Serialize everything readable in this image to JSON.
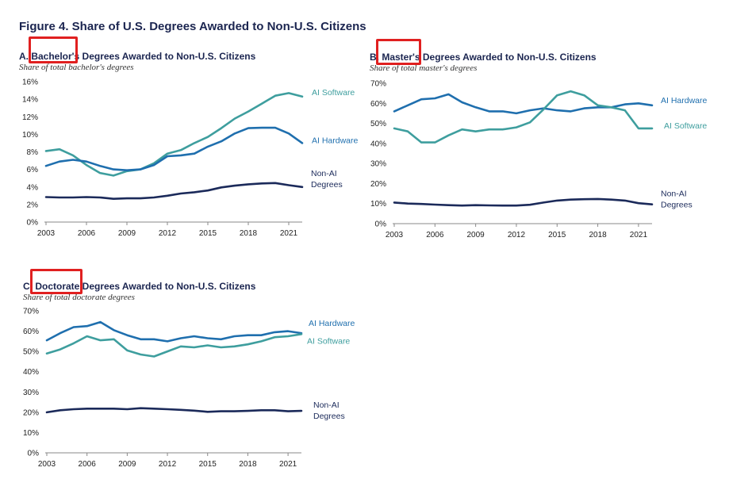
{
  "figure_title": "Figure 4. Share of U.S. Degrees Awarded to Non-U.S. Citizens",
  "colors": {
    "hardware": "#1f6fae",
    "software": "#3e9e9e",
    "nonai": "#1b2a5a",
    "highlight": "#e02020"
  },
  "chart_data": [
    {
      "type": "line",
      "panel": "A",
      "title": "A. Bachelor's Degrees Awarded to Non-U.S. Citizens",
      "subtitle": "Share of total bachelor's degrees",
      "highlighted_word": "Bachelor's",
      "x": [
        2003,
        2004,
        2005,
        2006,
        2007,
        2008,
        2009,
        2010,
        2011,
        2012,
        2013,
        2014,
        2015,
        2016,
        2017,
        2018,
        2019,
        2020,
        2021,
        2022
      ],
      "xticks": [
        2003,
        2006,
        2009,
        2012,
        2015,
        2018,
        2021
      ],
      "ylim": [
        0,
        16
      ],
      "yticks": [
        0,
        2,
        4,
        6,
        8,
        10,
        12,
        14,
        16
      ],
      "yformat": "%",
      "series": [
        {
          "name": "AI Software",
          "color_key": "software",
          "label_lines": [
            "AI Software"
          ],
          "values": [
            8.1,
            8.3,
            7.6,
            6.5,
            5.6,
            5.3,
            5.8,
            6.0,
            6.7,
            7.8,
            8.2,
            9.0,
            9.7,
            10.7,
            11.8,
            12.6,
            13.5,
            14.4,
            14.7,
            14.3
          ]
        },
        {
          "name": "AI Hardware",
          "color_key": "hardware",
          "label_lines": [
            "AI Hardware"
          ],
          "values": [
            6.4,
            6.9,
            7.1,
            6.9,
            6.4,
            6.0,
            5.9,
            6.0,
            6.5,
            7.5,
            7.6,
            7.8,
            8.6,
            9.2,
            10.1,
            10.7,
            10.75,
            10.75,
            10.1,
            9.0
          ]
        },
        {
          "name": "Non-AI Degrees",
          "color_key": "nonai",
          "label_lines": [
            "Non-AI",
            "Degrees"
          ],
          "values": [
            2.85,
            2.8,
            2.8,
            2.85,
            2.8,
            2.65,
            2.7,
            2.7,
            2.8,
            3.0,
            3.25,
            3.4,
            3.6,
            3.95,
            4.15,
            4.3,
            4.4,
            4.45,
            4.2,
            4.0
          ]
        }
      ]
    },
    {
      "type": "line",
      "panel": "B",
      "title": "B. Master's Degrees Awarded to Non-U.S. Citizens",
      "subtitle": "Share of total master's degrees",
      "highlighted_word": "Master's",
      "x": [
        2003,
        2004,
        2005,
        2006,
        2007,
        2008,
        2009,
        2010,
        2011,
        2012,
        2013,
        2014,
        2015,
        2016,
        2017,
        2018,
        2019,
        2020,
        2021,
        2022
      ],
      "xticks": [
        2003,
        2006,
        2009,
        2012,
        2015,
        2018,
        2021
      ],
      "ylim": [
        0,
        70
      ],
      "yticks": [
        0,
        10,
        20,
        30,
        40,
        50,
        60,
        70
      ],
      "yformat": "%",
      "series": [
        {
          "name": "AI Hardware",
          "color_key": "hardware",
          "label_lines": [
            "AI Hardware"
          ],
          "values": [
            56,
            59,
            62,
            62.5,
            64.5,
            60.5,
            58,
            56,
            56,
            55,
            56.5,
            57.5,
            56.5,
            56,
            57.5,
            58,
            58,
            59.5,
            60,
            59
          ]
        },
        {
          "name": "AI Software",
          "color_key": "software",
          "label_lines": [
            "AI Software"
          ],
          "values": [
            47.5,
            46,
            40.5,
            40.5,
            44,
            47,
            46,
            47,
            47,
            48,
            50.5,
            57,
            64,
            66,
            64,
            59,
            58,
            56.5,
            47.5,
            47.5
          ]
        },
        {
          "name": "Non-AI Degrees",
          "color_key": "nonai",
          "label_lines": [
            "Non-AI",
            "Degrees"
          ],
          "values": [
            10.5,
            10,
            9.8,
            9.5,
            9.2,
            9.0,
            9.2,
            9.1,
            9.0,
            9.0,
            9.4,
            10.5,
            11.5,
            12.0,
            12.2,
            12.3,
            12.0,
            11.5,
            10.2,
            9.6
          ]
        }
      ]
    },
    {
      "type": "line",
      "panel": "C",
      "title": "C. Doctorate Degrees Awarded to Non-U.S. Citizens",
      "subtitle": "Share of total doctorate degrees",
      "highlighted_word": "Doctorate",
      "x": [
        2003,
        2004,
        2005,
        2006,
        2007,
        2008,
        2009,
        2010,
        2011,
        2012,
        2013,
        2014,
        2015,
        2016,
        2017,
        2018,
        2019,
        2020,
        2021,
        2022
      ],
      "xticks": [
        2003,
        2006,
        2009,
        2012,
        2015,
        2018,
        2021
      ],
      "ylim": [
        0,
        70
      ],
      "yticks": [
        0,
        10,
        20,
        30,
        40,
        50,
        60,
        70
      ],
      "yformat": "%",
      "series": [
        {
          "name": "AI Hardware",
          "color_key": "hardware",
          "label_lines": [
            "AI Hardware"
          ],
          "values": [
            55.5,
            59,
            62,
            62.5,
            64.5,
            60.5,
            58,
            56,
            56,
            55,
            56.5,
            57.5,
            56.5,
            56,
            57.5,
            58,
            58,
            59.5,
            60,
            59
          ]
        },
        {
          "name": "AI Software",
          "color_key": "software",
          "label_lines": [
            "AI Software"
          ],
          "values": [
            49,
            51,
            54,
            57.5,
            55.5,
            56,
            50.5,
            48.5,
            47.5,
            50,
            52.5,
            52,
            53,
            52,
            52.5,
            53.5,
            55,
            57,
            57.5,
            58.5
          ]
        },
        {
          "name": "Non-AI Degrees",
          "color_key": "nonai",
          "label_lines": [
            "Non-AI",
            "Degrees"
          ],
          "values": [
            20,
            21,
            21.5,
            21.8,
            21.8,
            21.8,
            21.5,
            22,
            21.8,
            21.5,
            21.2,
            20.8,
            20.2,
            20.5,
            20.5,
            20.7,
            21.0,
            21.0,
            20.5,
            20.7
          ]
        }
      ]
    }
  ]
}
